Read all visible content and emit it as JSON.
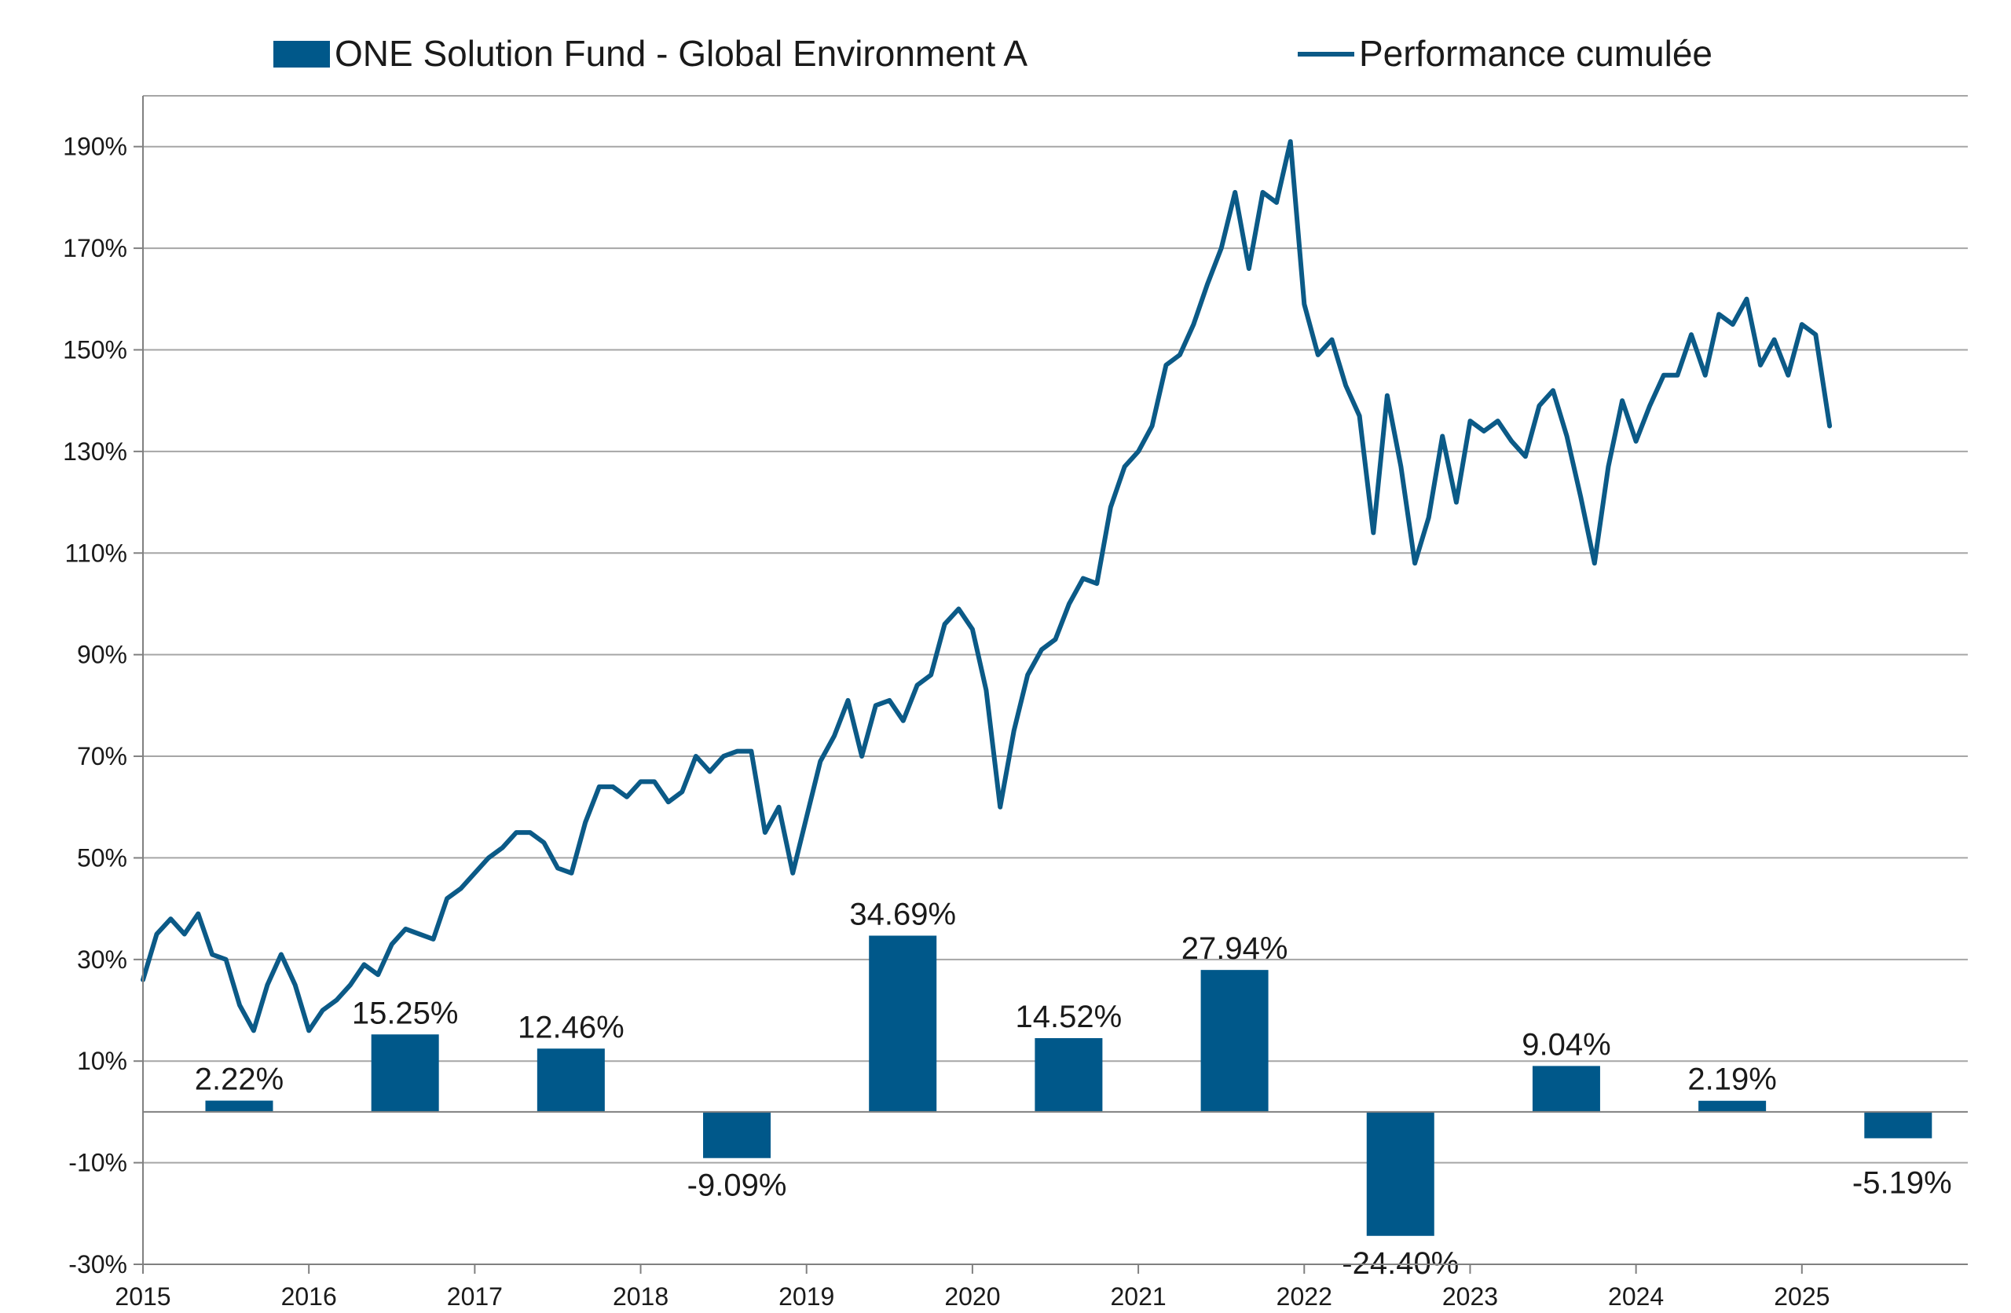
{
  "chart_data": {
    "type": "bar+line",
    "legend": {
      "placement": "top",
      "bar_series": "ONE Solution Fund - Global Environment A",
      "line_series": "Performance cumulée"
    },
    "colors": {
      "bar": "#00588A",
      "line": "#0B5A87",
      "grid": "#A6A6A6",
      "axis": "#808080"
    },
    "grid": true,
    "ylim": [
      -30,
      200
    ],
    "y_ticks": [
      -30,
      -10,
      10,
      30,
      50,
      70,
      90,
      110,
      130,
      150,
      170,
      190
    ],
    "y_tick_labels": [
      "-30%",
      "-10%",
      "10%",
      "30%",
      "50%",
      "70%",
      "90%",
      "110%",
      "130%",
      "150%",
      "170%",
      "190%"
    ],
    "x_tick_labels": [
      "2015",
      "2016",
      "2017",
      "2018",
      "2019",
      "2020",
      "2021",
      "2022",
      "2023",
      "2024",
      "2025"
    ],
    "annual_returns": {
      "name": "ONE Solution Fund - Global Environment A",
      "categories": [
        "2015",
        "2016",
        "2017",
        "2018",
        "2019",
        "2020",
        "2021",
        "2022",
        "2023",
        "2024",
        "2025"
      ],
      "values": [
        2.22,
        15.25,
        12.46,
        -9.09,
        34.69,
        14.52,
        27.94,
        -24.4,
        9.04,
        2.19,
        -5.19
      ],
      "labels": [
        "2.22%",
        "15.25%",
        "12.46%",
        "-9.09%",
        "34.69%",
        "14.52%",
        "27.94%",
        "-24.40%",
        "9.04%",
        "2.19%",
        ""
      ],
      "outside_label": "-5.19%"
    },
    "cumulative": {
      "name": "Performance cumulée",
      "x": [
        2015.0,
        2015.083,
        2015.167,
        2015.25,
        2015.333,
        2015.417,
        2015.5,
        2015.583,
        2015.667,
        2015.75,
        2015.833,
        2015.917,
        2016.0,
        2016.083,
        2016.167,
        2016.25,
        2016.333,
        2016.417,
        2016.5,
        2016.583,
        2016.667,
        2016.75,
        2016.833,
        2016.917,
        2017.0,
        2017.083,
        2017.167,
        2017.25,
        2017.333,
        2017.417,
        2017.5,
        2017.583,
        2017.667,
        2017.75,
        2017.833,
        2017.917,
        2018.0,
        2018.083,
        2018.167,
        2018.25,
        2018.333,
        2018.417,
        2018.5,
        2018.583,
        2018.667,
        2018.75,
        2018.833,
        2018.917,
        2019.0,
        2019.083,
        2019.167,
        2019.25,
        2019.333,
        2019.417,
        2019.5,
        2019.583,
        2019.667,
        2019.75,
        2019.833,
        2019.917,
        2020.0,
        2020.083,
        2020.167,
        2020.25,
        2020.333,
        2020.417,
        2020.5,
        2020.583,
        2020.667,
        2020.75,
        2020.833,
        2020.917,
        2021.0,
        2021.083,
        2021.167,
        2021.25,
        2021.333,
        2021.417,
        2021.5,
        2021.583,
        2021.667,
        2021.75,
        2021.833,
        2021.917,
        2022.0,
        2022.083,
        2022.167,
        2022.25,
        2022.333,
        2022.417,
        2022.5,
        2022.583,
        2022.667,
        2022.75,
        2022.833,
        2022.917,
        2023.0,
        2023.083,
        2023.167,
        2023.25,
        2023.333,
        2023.417,
        2023.5,
        2023.583,
        2023.667,
        2023.75,
        2023.833,
        2023.917,
        2024.0,
        2024.083,
        2024.167,
        2024.25,
        2024.333,
        2024.417,
        2024.5,
        2024.583,
        2024.667,
        2024.75,
        2024.833,
        2024.917,
        2025.0,
        2025.083,
        2025.167
      ],
      "y": [
        26,
        35,
        38,
        35,
        39,
        31,
        30,
        21,
        16,
        25,
        31,
        25,
        16,
        20,
        22,
        25,
        29,
        27,
        33,
        36,
        35,
        34,
        42,
        44,
        47,
        50,
        52,
        55,
        55,
        53,
        48,
        47,
        57,
        64,
        64,
        62,
        65,
        65,
        61,
        63,
        70,
        67,
        70,
        71,
        71,
        55,
        60,
        47,
        58,
        69,
        74,
        81,
        70,
        80,
        81,
        77,
        84,
        86,
        96,
        99,
        95,
        83,
        60,
        75,
        86,
        91,
        93,
        100,
        105,
        104,
        119,
        127,
        130,
        135,
        147,
        149,
        155,
        163,
        170,
        181,
        166,
        181,
        179,
        191,
        159,
        149,
        152,
        143,
        137,
        114,
        141,
        127,
        108,
        117,
        133,
        120,
        136,
        134,
        136,
        132,
        129,
        139,
        142,
        133,
        121,
        108,
        127,
        140,
        132,
        139,
        145,
        145,
        153,
        145,
        157,
        155,
        160,
        147,
        152,
        145,
        155,
        153,
        135
      ]
    }
  }
}
